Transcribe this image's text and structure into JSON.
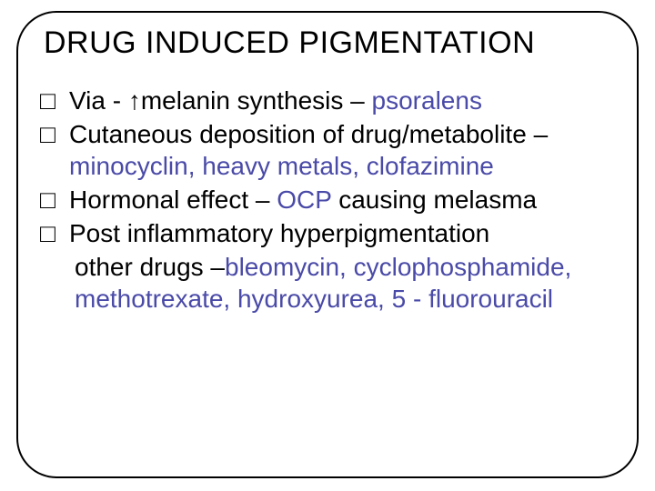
{
  "slide": {
    "title": "DRUG INDUCED PIGMENTATION",
    "title_color": "#000000",
    "title_fontsize": 34,
    "body_fontsize": 28,
    "border_color": "#000000",
    "border_radius": 44,
    "background_color": "#ffffff",
    "bullet_glyph": "□",
    "drug_color": "#4a4aa8",
    "items": [
      {
        "pre": "Via - ↑melanin synthesis – ",
        "drug": "psoralens",
        "post": ""
      },
      {
        "pre": "Cutaneous deposition of drug/metabolite – ",
        "drug": "minocyclin, heavy metals, clofazimine",
        "post": ""
      },
      {
        "pre": "Hormonal effect – ",
        "drug": "OCP",
        "post": " causing melasma"
      },
      {
        "pre": "Post inflammatory hyperpigmentation",
        "drug": "",
        "post": ""
      }
    ],
    "extra": {
      "continuation_pre": "  other drugs –",
      "continuation_drug": "bleomycin, cyclophosphamide, methotrexate, hydroxyurea, 5 - fluorouracil"
    }
  }
}
